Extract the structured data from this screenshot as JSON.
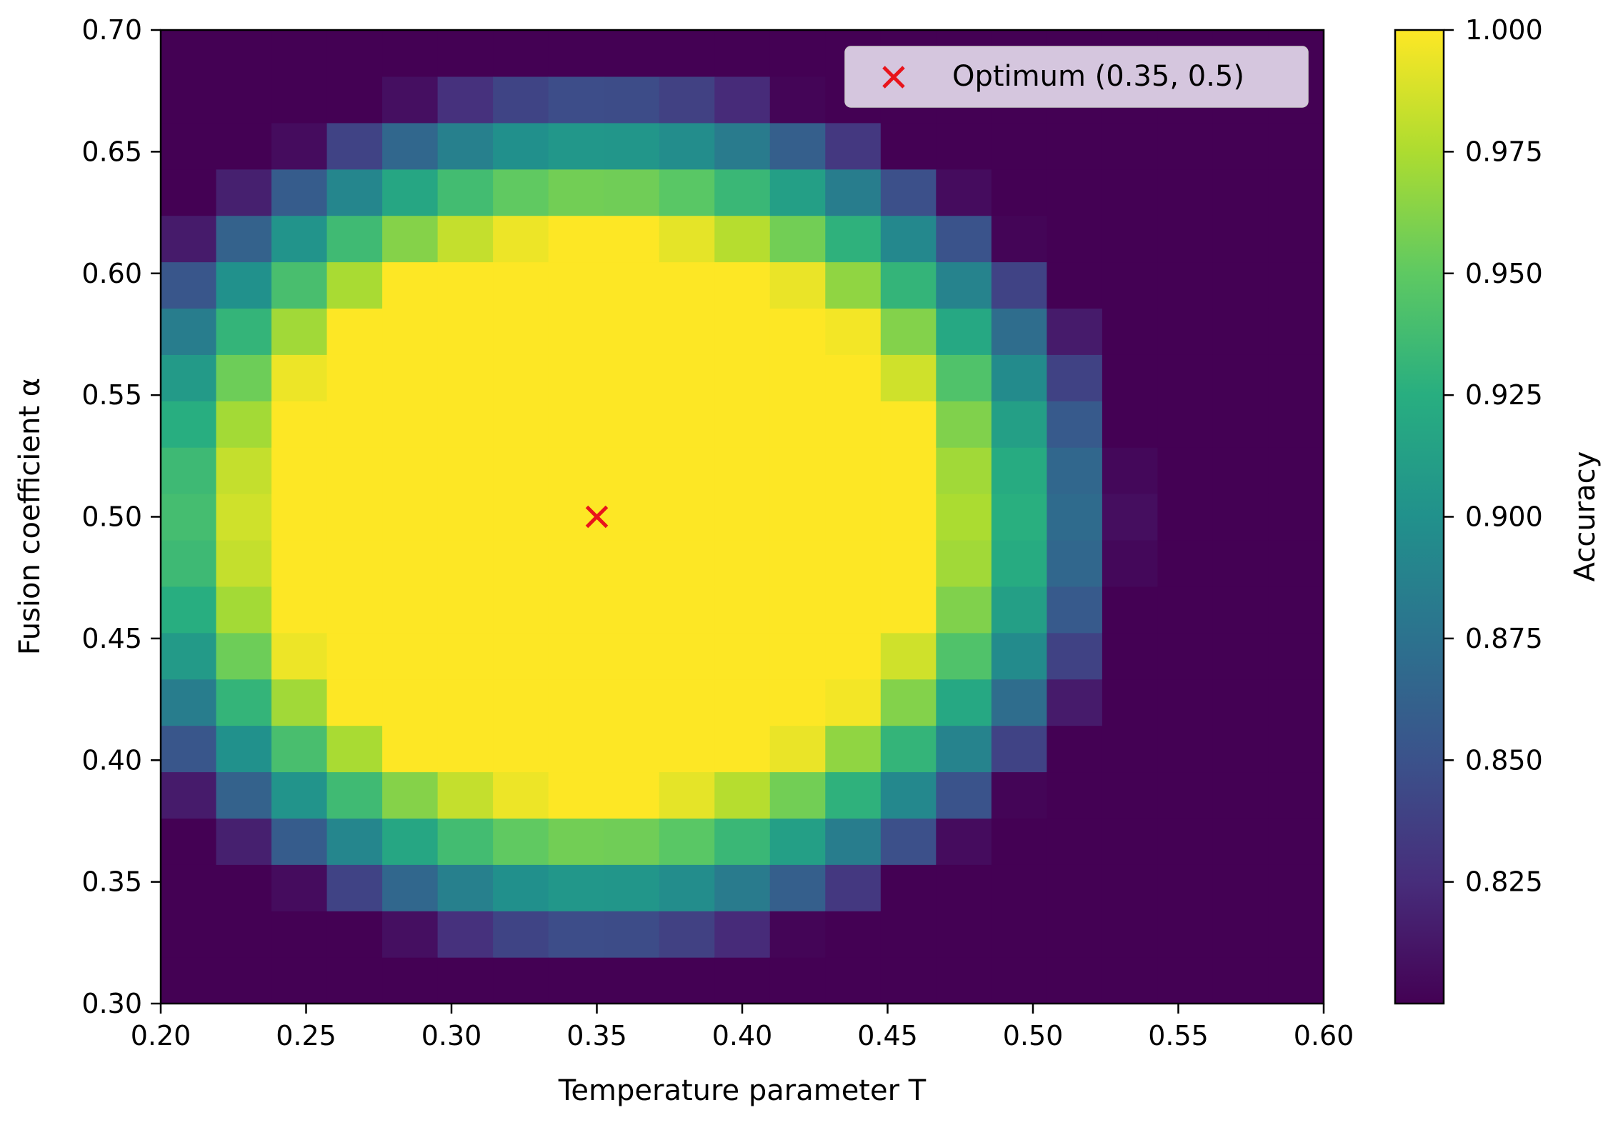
{
  "chart_data": {
    "type": "heatmap",
    "title": "",
    "xlabel": "Temperature parameter T",
    "ylabel": "Fusion coefficient α",
    "xlim": [
      0.2,
      0.6
    ],
    "ylim": [
      0.3,
      0.7
    ],
    "x_ticks": [
      "0.20",
      "0.25",
      "0.30",
      "0.35",
      "0.40",
      "0.45",
      "0.50",
      "0.55",
      "0.60"
    ],
    "y_ticks": [
      "0.30",
      "0.35",
      "0.40",
      "0.45",
      "0.50",
      "0.55",
      "0.60",
      "0.65",
      "0.70"
    ],
    "grid": {
      "nx": 21,
      "ny": 21,
      "cell_width_T": 0.019,
      "cell_height_alpha": 0.019
    },
    "value_model": {
      "formula": "clip(1.0 - 0.125 * (((T - 0.35) / 0.115)^2 + ((alpha - 0.5) / 0.115)^2 - 1), 0.80, 1.0)",
      "center": [
        0.35,
        0.5
      ],
      "plateau_value": 1.0,
      "min_value": 0.8
    },
    "colorbar": {
      "label": "Accuracy",
      "min": 0.8,
      "max": 1.0,
      "ticks": [
        "0.825",
        "0.850",
        "0.875",
        "0.900",
        "0.925",
        "0.950",
        "0.975",
        "1.000"
      ],
      "colormap": "viridis",
      "colors": [
        "#440154",
        "#472d7b",
        "#3b528b",
        "#2c728e",
        "#21918c",
        "#28ae80",
        "#5ec962",
        "#addc30",
        "#fde725"
      ]
    },
    "marker": {
      "label": "Optimum (0.35, 0.5)",
      "x": 0.35,
      "y": 0.5,
      "symbol": "x",
      "color": "#e8141b"
    },
    "legend": {
      "position": "top-right"
    }
  }
}
